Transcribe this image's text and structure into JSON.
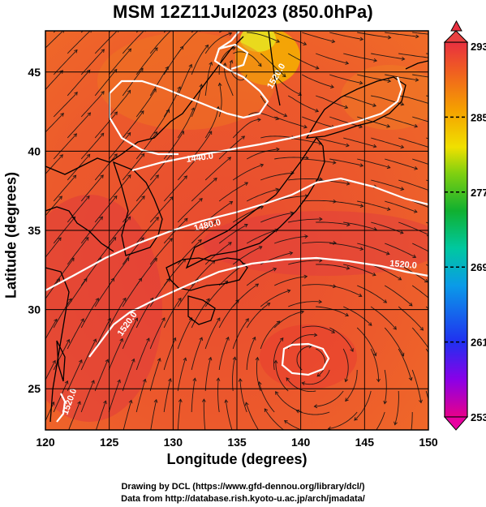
{
  "title": "MSM 12Z11Jul2023 (850.0hPa)",
  "xlabel": "Longitude (degrees)",
  "ylabel": "Latitude  (degrees)",
  "credits": {
    "line1": "Drawing by DCL (https://www.gfd-dennou.org/library/dcl/)",
    "line2": "Data from http://database.rish.kyoto-u.ac.jp/arch/jmadata/"
  },
  "map": {
    "lon_range": [
      120,
      150
    ],
    "lat_range": [
      22.4,
      47.6
    ],
    "x_ticks": [
      120,
      125,
      130,
      135,
      140,
      145,
      150
    ],
    "y_ticks": [
      25,
      30,
      35,
      40,
      45
    ],
    "contour_labels": [
      "1440.0",
      "1480.0",
      "1520.0",
      "1520.0",
      "1520.0",
      "1520.0"
    ]
  },
  "colorbar": {
    "min": 253,
    "max": 293,
    "tick_labels": [
      "293",
      "285",
      "277",
      "269",
      "261",
      "253"
    ],
    "colors": [
      "#e8008a",
      "#8a00e8",
      "#2030f0",
      "#0a9ae8",
      "#00c8a0",
      "#10b030",
      "#80d010",
      "#f0e000",
      "#f5a000",
      "#f06020",
      "#e83040"
    ]
  }
}
